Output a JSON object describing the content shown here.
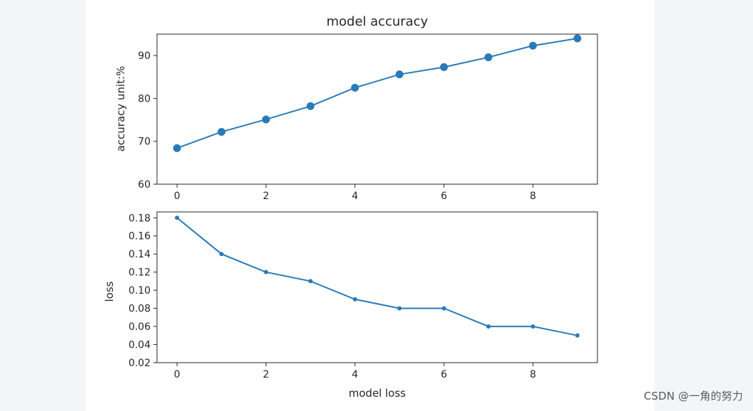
{
  "watermark": "CSDN @一角的努力",
  "colors": {
    "series": "#2a7ab8",
    "axes": "#262626"
  },
  "chart_data": [
    {
      "type": "line",
      "title": "model accuracy",
      "xlabel": "",
      "ylabel": "accuracy unit:%",
      "x": [
        0,
        1,
        2,
        3,
        4,
        5,
        6,
        7,
        8,
        9
      ],
      "values": [
        68.4,
        72.2,
        75.1,
        78.2,
        82.5,
        85.6,
        87.3,
        89.6,
        92.3,
        94.0
      ],
      "marker": "large-circle",
      "xlim": [
        -0.45,
        9.45
      ],
      "ylim": [
        60,
        95
      ],
      "xticks": [
        0,
        2,
        4,
        6,
        8
      ],
      "yticks": [
        60,
        70,
        80,
        90
      ],
      "xtick_labels": [
        "0",
        "2",
        "4",
        "6",
        "8"
      ],
      "ytick_labels": [
        "60",
        "70",
        "80",
        "90"
      ],
      "grid": false
    },
    {
      "type": "line",
      "title": "",
      "xlabel": "model loss",
      "ylabel": "loss",
      "x": [
        0,
        1,
        2,
        3,
        4,
        5,
        6,
        7,
        8,
        9
      ],
      "values": [
        0.18,
        0.14,
        0.12,
        0.11,
        0.09,
        0.08,
        0.08,
        0.06,
        0.06,
        0.05
      ],
      "marker": "small-dot",
      "xlim": [
        -0.45,
        9.45
      ],
      "ylim": [
        0.02,
        0.1865
      ],
      "xticks": [
        0,
        2,
        4,
        6,
        8
      ],
      "yticks": [
        0.02,
        0.04,
        0.06,
        0.08,
        0.1,
        0.12,
        0.14,
        0.16,
        0.18
      ],
      "xtick_labels": [
        "0",
        "2",
        "4",
        "6",
        "8"
      ],
      "ytick_labels": [
        "0.02",
        "0.04",
        "0.06",
        "0.08",
        "0.10",
        "0.12",
        "0.14",
        "0.16",
        "0.18"
      ],
      "grid": false
    }
  ]
}
